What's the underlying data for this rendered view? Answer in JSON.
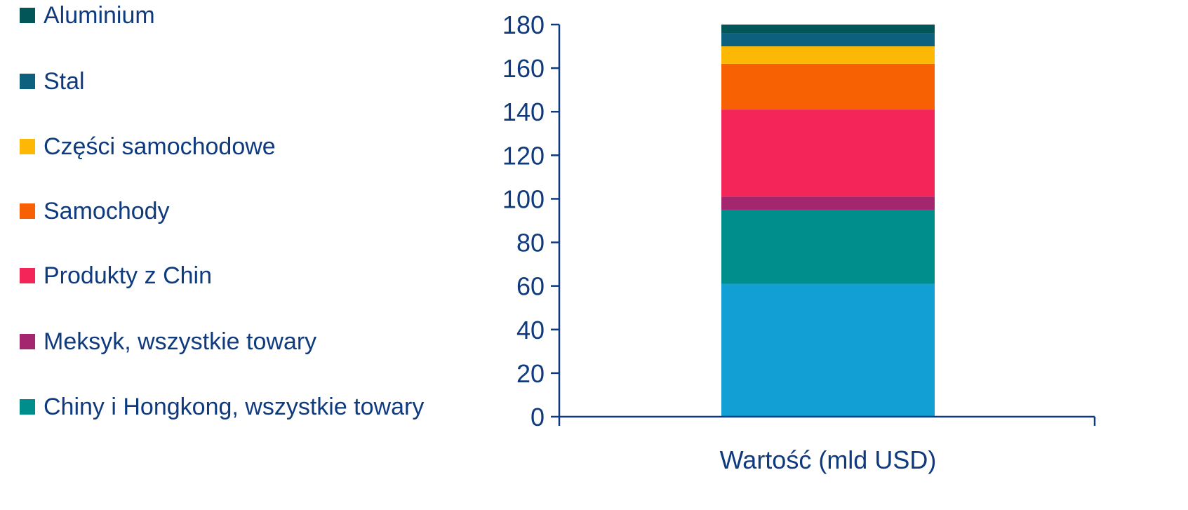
{
  "chart_data": {
    "type": "bar",
    "stacked": true,
    "title": "",
    "xlabel": "",
    "ylabel": "",
    "categories": [
      "Wartość (mld USD)"
    ],
    "ylim": [
      0,
      180
    ],
    "yticks": [
      0,
      20,
      40,
      60,
      80,
      100,
      120,
      140,
      160,
      180
    ],
    "grid": false,
    "legend_placement": "left",
    "series": [
      {
        "color": "#12a0d4",
        "values": [
          61
        ]
      },
      {
        "name": "Chiny i Hongkong, wszystkie towary",
        "color": "#008e8c",
        "values": [
          34
        ]
      },
      {
        "name": "Meksyk, wszystkie towary",
        "color": "#a3266e",
        "values": [
          6
        ]
      },
      {
        "name": "Produkty z Chin",
        "color": "#f42559",
        "values": [
          40
        ]
      },
      {
        "name": "Samochody",
        "color": "#f76103",
        "values": [
          21
        ]
      },
      {
        "name": "Części samochodowe",
        "color": "#fdb705",
        "values": [
          8
        ]
      },
      {
        "name": "Stal",
        "color": "#0e607f",
        "values": [
          6
        ]
      },
      {
        "name": "Aluminium",
        "color": "#035658",
        "values": [
          4
        ]
      }
    ],
    "axis_color": "#0f3a7d"
  }
}
